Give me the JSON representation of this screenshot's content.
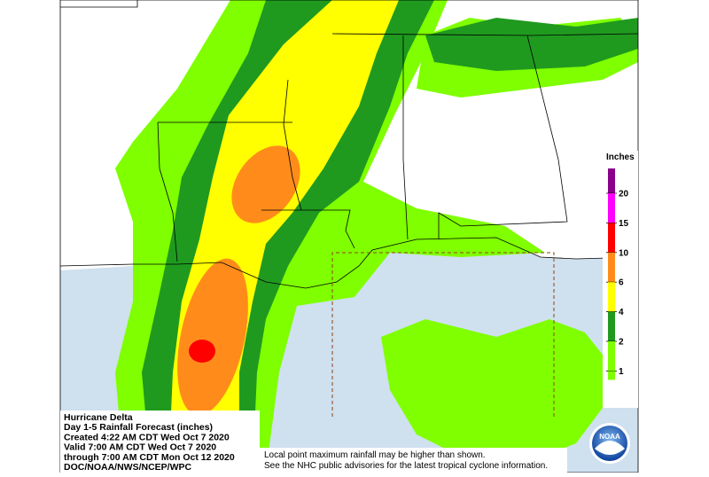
{
  "legend": {
    "title": "Inches",
    "ticks": [
      20,
      15,
      10,
      6,
      4,
      2,
      1
    ]
  },
  "info": {
    "lines": [
      "Hurricane Delta",
      "Day 1-5 Rainfall Forecast (inches)",
      "Created 4:22 AM CDT Wed Oct 7 2020",
      "Valid 7:00 AM CDT Wed Oct 7 2020",
      "through 7:00 AM CDT Mon Oct 12 2020",
      "DOC/NOAA/NWS/NCEP/WPC"
    ]
  },
  "disclaimer": {
    "lines": [
      "Local point maximum rainfall may be higher than shown.",
      "See the NHC public advisories for the latest tropical cyclone information."
    ]
  },
  "logo": {
    "text": "NOAA"
  }
}
